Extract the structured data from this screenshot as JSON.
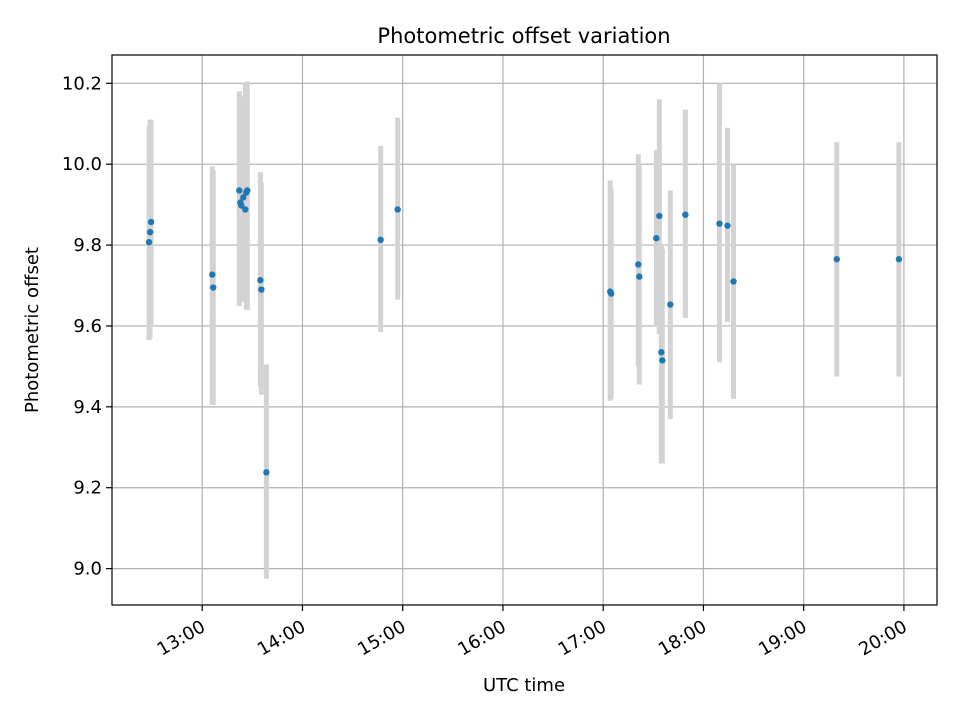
{
  "chart_data": {
    "type": "scatter",
    "title": "Photometric offset variation",
    "xlabel": "UTC time",
    "ylabel": "Photometric offset",
    "x_unit": "hours UTC",
    "xlim": [
      12.1,
      20.33
    ],
    "ylim": [
      8.91,
      10.27
    ],
    "x_ticks": [
      13,
      14,
      15,
      16,
      17,
      18,
      19,
      20
    ],
    "x_tick_labels": [
      "13:00",
      "14:00",
      "15:00",
      "16:00",
      "17:00",
      "18:00",
      "19:00",
      "20:00"
    ],
    "y_ticks": [
      9.0,
      9.2,
      9.4,
      9.6,
      9.8,
      10.0,
      10.2
    ],
    "y_tick_labels": [
      "9.0",
      "9.2",
      "9.4",
      "9.6",
      "9.8",
      "10.0",
      "10.2"
    ],
    "grid": true,
    "marker_color": "#1f77b4",
    "errorbar_color": "#d3d3d3",
    "points": [
      {
        "x": 12.47,
        "y": 9.807,
        "lo": 9.565,
        "hi": 10.095
      },
      {
        "x": 12.48,
        "y": 9.832,
        "lo": 9.57,
        "hi": 10.11
      },
      {
        "x": 12.49,
        "y": 9.857,
        "lo": 9.6,
        "hi": 10.11
      },
      {
        "x": 13.1,
        "y": 9.727,
        "lo": 9.405,
        "hi": 9.995
      },
      {
        "x": 13.11,
        "y": 9.695,
        "lo": 9.405,
        "hi": 9.985
      },
      {
        "x": 13.37,
        "y": 9.935,
        "lo": 9.65,
        "hi": 10.18
      },
      {
        "x": 13.38,
        "y": 9.905,
        "lo": 9.66,
        "hi": 10.17
      },
      {
        "x": 13.39,
        "y": 9.898,
        "lo": 9.67,
        "hi": 10.15
      },
      {
        "x": 13.41,
        "y": 9.918,
        "lo": 9.66,
        "hi": 10.13
      },
      {
        "x": 13.43,
        "y": 9.888,
        "lo": 9.66,
        "hi": 10.2
      },
      {
        "x": 13.44,
        "y": 9.93,
        "lo": 9.64,
        "hi": 10.2
      },
      {
        "x": 13.45,
        "y": 9.935,
        "lo": 9.64,
        "hi": 10.205
      },
      {
        "x": 13.58,
        "y": 9.713,
        "lo": 9.45,
        "hi": 9.98
      },
      {
        "x": 13.59,
        "y": 9.69,
        "lo": 9.43,
        "hi": 9.955
      },
      {
        "x": 13.64,
        "y": 9.238,
        "lo": 8.975,
        "hi": 9.505
      },
      {
        "x": 14.78,
        "y": 9.813,
        "lo": 9.585,
        "hi": 10.045
      },
      {
        "x": 14.95,
        "y": 9.888,
        "lo": 9.665,
        "hi": 10.115
      },
      {
        "x": 17.07,
        "y": 9.685,
        "lo": 9.415,
        "hi": 9.96
      },
      {
        "x": 17.08,
        "y": 9.68,
        "lo": 9.42,
        "hi": 9.94
      },
      {
        "x": 17.35,
        "y": 9.752,
        "lo": 9.5,
        "hi": 10.025
      },
      {
        "x": 17.36,
        "y": 9.722,
        "lo": 9.455,
        "hi": 10.0
      },
      {
        "x": 17.53,
        "y": 9.817,
        "lo": 9.6,
        "hi": 10.035
      },
      {
        "x": 17.56,
        "y": 9.872,
        "lo": 9.58,
        "hi": 10.16
      },
      {
        "x": 17.58,
        "y": 9.535,
        "lo": 9.26,
        "hi": 9.8
      },
      {
        "x": 17.59,
        "y": 9.515,
        "lo": 9.26,
        "hi": 9.79
      },
      {
        "x": 17.67,
        "y": 9.653,
        "lo": 9.37,
        "hi": 9.935
      },
      {
        "x": 17.82,
        "y": 9.875,
        "lo": 9.62,
        "hi": 10.135
      },
      {
        "x": 18.16,
        "y": 9.853,
        "lo": 9.51,
        "hi": 10.2
      },
      {
        "x": 18.24,
        "y": 9.848,
        "lo": 9.61,
        "hi": 10.09
      },
      {
        "x": 18.3,
        "y": 9.71,
        "lo": 9.42,
        "hi": 10.0
      },
      {
        "x": 19.33,
        "y": 9.765,
        "lo": 9.475,
        "hi": 10.055
      },
      {
        "x": 19.95,
        "y": 9.765,
        "lo": 9.475,
        "hi": 10.055
      }
    ]
  }
}
